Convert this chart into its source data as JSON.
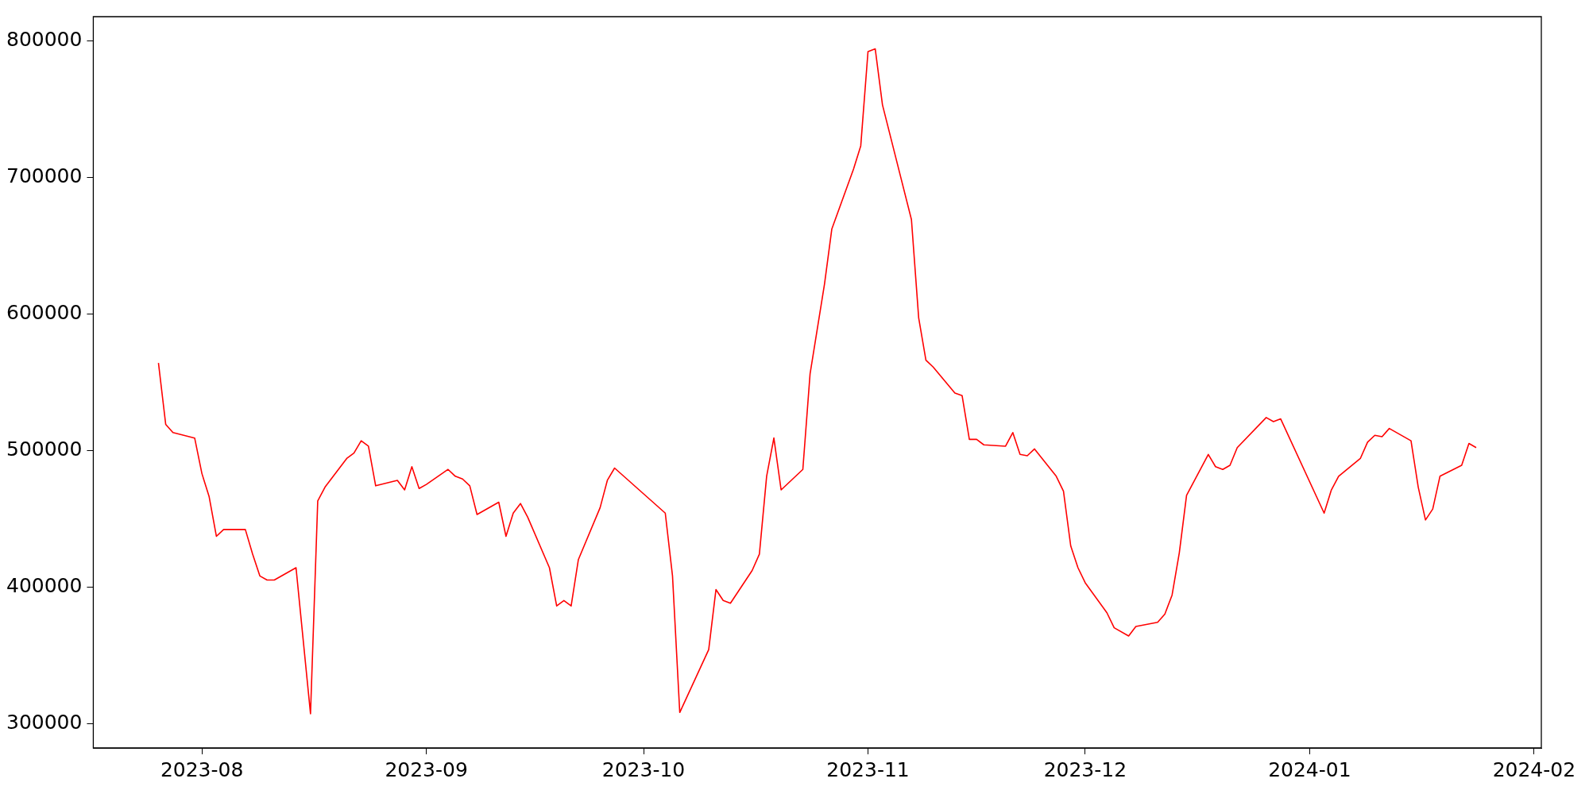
{
  "chart_data": {
    "type": "line",
    "x": [
      "2023-07-26",
      "2023-07-27",
      "2023-07-28",
      "2023-07-31",
      "2023-08-01",
      "2023-08-02",
      "2023-08-03",
      "2023-08-04",
      "2023-08-07",
      "2023-08-08",
      "2023-08-09",
      "2023-08-10",
      "2023-08-11",
      "2023-08-14",
      "2023-08-16",
      "2023-08-17",
      "2023-08-18",
      "2023-08-21",
      "2023-08-22",
      "2023-08-23",
      "2023-08-24",
      "2023-08-25",
      "2023-08-28",
      "2023-08-29",
      "2023-08-30",
      "2023-08-31",
      "2023-09-01",
      "2023-09-04",
      "2023-09-05",
      "2023-09-06",
      "2023-09-07",
      "2023-09-08",
      "2023-09-11",
      "2023-09-12",
      "2023-09-13",
      "2023-09-14",
      "2023-09-15",
      "2023-09-18",
      "2023-09-19",
      "2023-09-20",
      "2023-09-21",
      "2023-09-22",
      "2023-09-25",
      "2023-09-26",
      "2023-09-27",
      "2023-10-04",
      "2023-10-05",
      "2023-10-06",
      "2023-10-10",
      "2023-10-11",
      "2023-10-12",
      "2023-10-13",
      "2023-10-16",
      "2023-10-17",
      "2023-10-18",
      "2023-10-19",
      "2023-10-20",
      "2023-10-23",
      "2023-10-24",
      "2023-10-26",
      "2023-10-27",
      "2023-10-30",
      "2023-10-31",
      "2023-11-01",
      "2023-11-02",
      "2023-11-03",
      "2023-11-07",
      "2023-11-08",
      "2023-11-09",
      "2023-11-10",
      "2023-11-13",
      "2023-11-14",
      "2023-11-15",
      "2023-11-16",
      "2023-11-17",
      "2023-11-20",
      "2023-11-21",
      "2023-11-22",
      "2023-11-23",
      "2023-11-24",
      "2023-11-27",
      "2023-11-28",
      "2023-11-29",
      "2023-11-30",
      "2023-12-01",
      "2023-12-04",
      "2023-12-05",
      "2023-12-07",
      "2023-12-08",
      "2023-12-11",
      "2023-12-12",
      "2023-12-13",
      "2023-12-14",
      "2023-12-15",
      "2023-12-18",
      "2023-12-19",
      "2023-12-20",
      "2023-12-21",
      "2023-12-22",
      "2023-12-26",
      "2023-12-27",
      "2023-12-28",
      "2024-01-03",
      "2024-01-04",
      "2024-01-05",
      "2024-01-08",
      "2024-01-09",
      "2024-01-10",
      "2024-01-11",
      "2024-01-12",
      "2024-01-15",
      "2024-01-16",
      "2024-01-17",
      "2024-01-18",
      "2024-01-19",
      "2024-01-22",
      "2024-01-23",
      "2024-01-24"
    ],
    "series": [
      {
        "color": "#ff0000",
        "values": [
          564000,
          519000,
          513000,
          509000,
          483000,
          466000,
          437000,
          442000,
          442000,
          424000,
          408000,
          405000,
          405000,
          414000,
          307000,
          463000,
          473000,
          494000,
          498000,
          507000,
          503000,
          474000,
          478000,
          471000,
          488000,
          472000,
          475000,
          486000,
          481000,
          479000,
          474000,
          453000,
          462000,
          437000,
          454000,
          461000,
          451000,
          414000,
          386000,
          390000,
          386000,
          420000,
          458000,
          478000,
          487000,
          454000,
          408000,
          308000,
          354000,
          398000,
          390000,
          388000,
          412000,
          424000,
          481000,
          509000,
          471000,
          486000,
          556000,
          622000,
          662000,
          706000,
          723000,
          792000,
          794000,
          753000,
          669000,
          597000,
          566000,
          561000,
          542000,
          540000,
          508000,
          508000,
          504000,
          503000,
          513000,
          497000,
          496000,
          501000,
          481000,
          470000,
          430000,
          414000,
          403000,
          381000,
          370000,
          364000,
          371000,
          374000,
          380000,
          394000,
          425000,
          467000,
          497000,
          488000,
          486000,
          489000,
          502000,
          524000,
          521000,
          523000,
          454000,
          471000,
          481000,
          494000,
          506000,
          511000,
          510000,
          516000,
          507000,
          473000,
          449000,
          457000,
          481000,
          489000,
          505000,
          502000
        ]
      }
    ],
    "xlim": [
      "2023-07-17",
      "2024-02-02"
    ],
    "xticks": [
      "2023-08",
      "2023-09",
      "2023-10",
      "2023-11",
      "2023-12",
      "2024-01",
      "2024-02"
    ],
    "ylim": [
      282000,
      817600
    ],
    "yticks": [
      300000,
      400000,
      500000,
      600000,
      700000,
      800000
    ],
    "grid": false,
    "legend": false,
    "marker": "none",
    "line_style": "solid"
  }
}
